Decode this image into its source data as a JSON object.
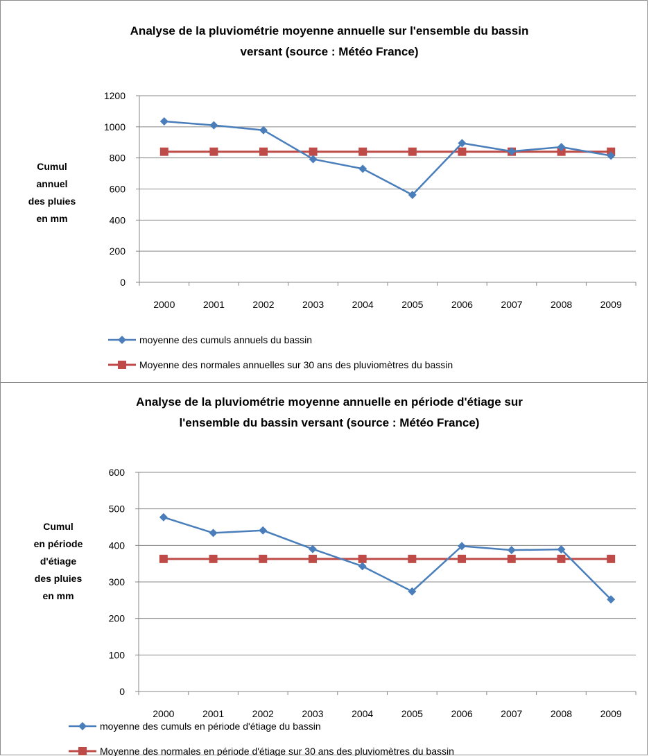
{
  "colors": {
    "series_avg": "#4a7ebb",
    "series_normal": "#be4b48",
    "grid": "#878787",
    "axis": "#878787",
    "text": "#000000"
  },
  "chart_data": [
    {
      "type": "line",
      "title": "Analyse de la pluviométrie moyenne annuelle sur l'ensemble du bassin versant (source : Météo France)",
      "title_lines": [
        "Analyse de la pluviométrie moyenne annuelle sur l'ensemble du bassin",
        "versant (source : Météo France)"
      ],
      "ylabel_lines": [
        "Cumul",
        "annuel",
        "des pluies",
        "en mm"
      ],
      "categories": [
        "2000",
        "2001",
        "2002",
        "2003",
        "2004",
        "2005",
        "2006",
        "2007",
        "2008",
        "2009"
      ],
      "yticks": [
        "0",
        "200",
        "400",
        "600",
        "800",
        "1000",
        "1200"
      ],
      "ylim": [
        0,
        1200
      ],
      "grid": true,
      "legend_position": "bottom",
      "series": [
        {
          "name": "moyenne des cumuls annuels du bassin",
          "marker": "diamond",
          "color": "#4a7ebb",
          "values": [
            1035,
            1010,
            978,
            792,
            730,
            562,
            895,
            842,
            870,
            814
          ]
        },
        {
          "name": "Moyenne des normales annuelles sur 30 ans des pluviomètres du bassin",
          "marker": "square",
          "color": "#be4b48",
          "values": [
            840,
            840,
            840,
            840,
            840,
            840,
            840,
            840,
            840,
            840
          ]
        }
      ]
    },
    {
      "type": "line",
      "title": "Analyse de la pluviométrie moyenne annuelle en période d'étiage sur l'ensemble du bassin versant (source : Météo France)",
      "title_lines": [
        "Analyse de la pluviométrie moyenne annuelle en période d'étiage sur",
        "l'ensemble du bassin versant (source : Météo France)"
      ],
      "ylabel_lines": [
        "Cumul",
        "en période",
        "d'étiage",
        "des pluies",
        "en mm"
      ],
      "categories": [
        "2000",
        "2001",
        "2002",
        "2003",
        "2004",
        "2005",
        "2006",
        "2007",
        "2008",
        "2009"
      ],
      "yticks": [
        "0",
        "100",
        "200",
        "300",
        "400",
        "500",
        "600"
      ],
      "ylim": [
        0,
        600
      ],
      "grid": true,
      "legend_position": "bottom",
      "series": [
        {
          "name": "moyenne des cumuls en période d'étiage du bassin",
          "marker": "diamond",
          "color": "#4a7ebb",
          "values": [
            477,
            434,
            441,
            390,
            343,
            274,
            398,
            387,
            389,
            252
          ]
        },
        {
          "name": "Moyenne des normales en période d'étiage sur 30 ans des pluviomètres du bassin",
          "marker": "square",
          "color": "#be4b48",
          "values": [
            363,
            363,
            363,
            363,
            363,
            363,
            363,
            363,
            363,
            363
          ]
        }
      ]
    }
  ]
}
